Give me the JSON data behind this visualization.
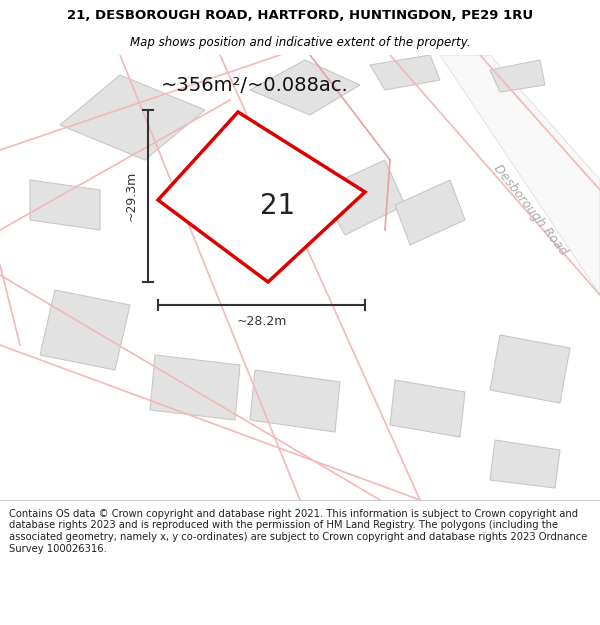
{
  "title_line1": "21, DESBOROUGH ROAD, HARTFORD, HUNTINGDON, PE29 1RU",
  "title_line2": "Map shows position and indicative extent of the property.",
  "area_text": "~356m²/~0.088ac.",
  "house_number": "21",
  "dim_vertical": "~29.3m",
  "dim_horizontal": "~28.2m",
  "road_label": "Desborough Road",
  "footer_text": "Contains OS data © Crown copyright and database right 2021. This information is subject to Crown copyright and database rights 2023 and is reproduced with the permission of HM Land Registry. The polygons (including the associated geometry, namely x, y co-ordinates) are subject to Crown copyright and database rights 2023 Ordnance Survey 100026316.",
  "map_bg": "#f7f7f7",
  "building_fill": "#e2e2e2",
  "building_edge": "#c8c8c8",
  "road_fill": "#ffffff",
  "road_edge": "#d8d8d8",
  "main_plot_fill": "#ffffff",
  "main_plot_edge": "#dd0000",
  "road_line_color": "#f4b8b8",
  "boundary_line_color": "#e8a0a0",
  "dim_color": "#333333",
  "road_label_color": "#aaaaaa",
  "title_bg": "#ffffff",
  "footer_bg": "#ffffff",
  "title_fontsize": 9.5,
  "subtitle_fontsize": 8.5,
  "area_fontsize": 14,
  "number_fontsize": 20,
  "dim_fontsize": 9,
  "road_label_fontsize": 9,
  "footer_fontsize": 7.2
}
